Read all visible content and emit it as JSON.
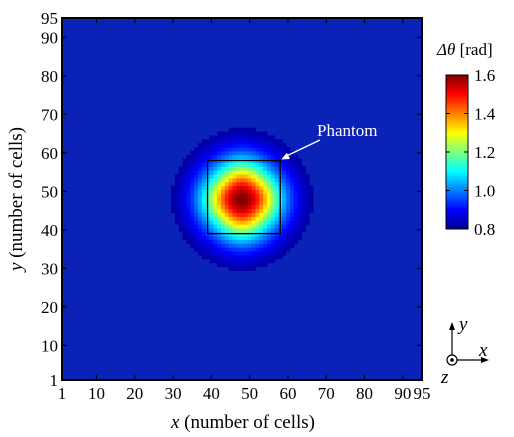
{
  "chart_data": {
    "type": "heatmap",
    "title": "",
    "x_range": [
      1,
      95
    ],
    "y_range": [
      1,
      95
    ],
    "x_ticks": [
      "1",
      "10",
      "20",
      "30",
      "40",
      "50",
      "60",
      "70",
      "80",
      "90",
      "95"
    ],
    "y_ticks": [
      "1",
      "10",
      "20",
      "30",
      "40",
      "50",
      "60",
      "70",
      "80",
      "90",
      "95"
    ],
    "x_tick_values": [
      1,
      10,
      20,
      30,
      40,
      50,
      60,
      70,
      80,
      90,
      95
    ],
    "y_tick_values": [
      1,
      10,
      20,
      30,
      40,
      50,
      60,
      70,
      80,
      90,
      95
    ],
    "xlabel": {
      "var": "x",
      "rest": " (number of cells)"
    },
    "ylabel": {
      "var": "y",
      "rest": "  (number of cells)"
    },
    "field": {
      "background": 0.8,
      "peak": 1.6,
      "center": [
        48,
        48
      ],
      "description_values": "Gaussian-like blob of Δθ centered near (48,48)"
    },
    "phantom": {
      "label": "Phantom",
      "x_range": [
        39,
        58
      ],
      "y_range": [
        39,
        58
      ]
    },
    "colorbar": {
      "title_symbol": "Δθ",
      "title_unit": " [rad]",
      "min": 0.8,
      "max": 1.6,
      "ticks": [
        "0.8",
        "1.0",
        "1.2",
        "1.4",
        "1.6"
      ],
      "tick_values": [
        0.8,
        1.0,
        1.2,
        1.4,
        1.6
      ]
    },
    "axes_indicator": {
      "x": "x",
      "y": "y",
      "z": "z"
    },
    "colors": {
      "low": "#00008f",
      "background": "#0a22b8",
      "mid": "#00ffff",
      "high": "#b00000"
    }
  }
}
